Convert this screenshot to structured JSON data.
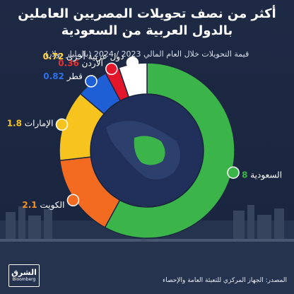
{
  "title_line1": "أكثر من نصف تحويلات المصريين العاملين",
  "title_line2": "بالدول العربية من السعودية",
  "subtitle": "قيمة التحويلات خلال العام المالي 2023 / 2024 (بالمليار دولار)",
  "source": "المصدر: الجهاز المركزي للتعبئة العامة والإحصاء",
  "logo_text_arabic": "الشرق",
  "logo_text_english": "Bloomberg",
  "colors": {
    "saudi": "#3bb54a",
    "kuwait": "#f26b21",
    "uae": "#f7c31e",
    "qatar": "#1f5fd6",
    "jordan": "#e4162b",
    "other": "#ffffff",
    "value_text_saudi": "#3bb54a",
    "value_text_kuwait": "#f7931e",
    "value_text_uae": "#f7c31e",
    "value_text_qatar": "#2f6fe4",
    "value_text_jordan": "#e63232",
    "value_text_other": "#ffd23f"
  },
  "chart_data": {
    "type": "pie",
    "style": "donut",
    "unit": "بالمليار دولار",
    "slices": [
      {
        "label": "السعودية",
        "value": 8,
        "value_text": "8",
        "color_key": "saudi"
      },
      {
        "label": "الكويت",
        "value": 2.1,
        "value_text": "2.1",
        "color_key": "kuwait"
      },
      {
        "label": "الإمارات",
        "value": 1.8,
        "value_text": "1.8",
        "color_key": "uae"
      },
      {
        "label": "قطر",
        "value": 0.82,
        "value_text": "0.82",
        "color_key": "qatar"
      },
      {
        "label": "الأردن",
        "value": 0.36,
        "value_text": "0.36",
        "color_key": "jordan"
      },
      {
        "label": "دول عربية أخرى",
        "value": 0.72,
        "value_text": "0.72",
        "color_key": "other"
      }
    ]
  }
}
